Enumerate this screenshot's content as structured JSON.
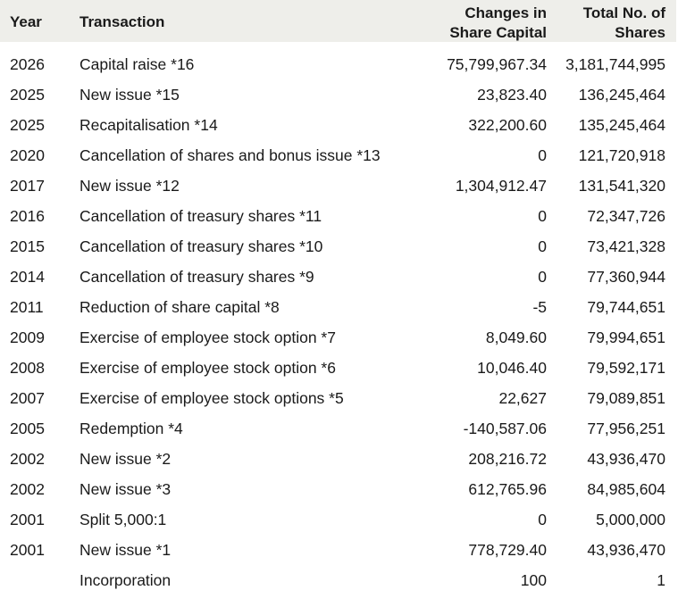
{
  "header": {
    "year": "Year",
    "transaction": "Transaction",
    "changes_line1": "Changes in",
    "changes_line2": "Share Capital",
    "total_line1": "Total No. of",
    "total_line2": "Shares"
  },
  "rows": [
    {
      "year": "2026",
      "transaction": "Capital raise *16",
      "change": "75,799,967.34",
      "total": "3,181,744,995"
    },
    {
      "year": "2025",
      "transaction": "New issue *15",
      "change": "23,823.40",
      "total": "136,245,464"
    },
    {
      "year": "2025",
      "transaction": "Recapitalisation *14",
      "change": "322,200.60",
      "total": "135,245,464"
    },
    {
      "year": "2020",
      "transaction": "Cancellation of shares and bonus issue *13",
      "change": "0",
      "total": "121,720,918"
    },
    {
      "year": "2017",
      "transaction": "New issue *12",
      "change": "1,304,912.47",
      "total": "131,541,320"
    },
    {
      "year": "2016",
      "transaction": "Cancellation of treasury shares *11",
      "change": "0",
      "total": "72,347,726"
    },
    {
      "year": "2015",
      "transaction": "Cancellation of treasury shares *10",
      "change": "0",
      "total": "73,421,328"
    },
    {
      "year": "2014",
      "transaction": "Cancellation of treasury shares *9",
      "change": "0",
      "total": "77,360,944"
    },
    {
      "year": "2011",
      "transaction": "Reduction of share capital *8",
      "change": "-5",
      "total": "79,744,651"
    },
    {
      "year": "2009",
      "transaction": "Exercise of employee stock option *7",
      "change": "8,049.60",
      "total": "79,994,651"
    },
    {
      "year": "2008",
      "transaction": "Exercise of employee stock option *6",
      "change": "10,046.40",
      "total": "79,592,171"
    },
    {
      "year": "2007",
      "transaction": "Exercise of employee stock options *5",
      "change": "22,627",
      "total": "79,089,851"
    },
    {
      "year": "2005",
      "transaction": "Redemption *4",
      "change": "-140,587.06",
      "total": "77,956,251"
    },
    {
      "year": "2002",
      "transaction": "New issue *2",
      "change": "208,216.72",
      "total": "43,936,470"
    },
    {
      "year": "2002",
      "transaction": "New issue *3",
      "change": "612,765.96",
      "total": "84,985,604"
    },
    {
      "year": "2001",
      "transaction": "Split 5,000:1",
      "change": "0",
      "total": "5,000,000"
    },
    {
      "year": "2001",
      "transaction": "New issue *1",
      "change": "778,729.40",
      "total": "43,936,470"
    },
    {
      "year": "",
      "transaction": "Incorporation",
      "change": "100",
      "total": "1"
    }
  ]
}
